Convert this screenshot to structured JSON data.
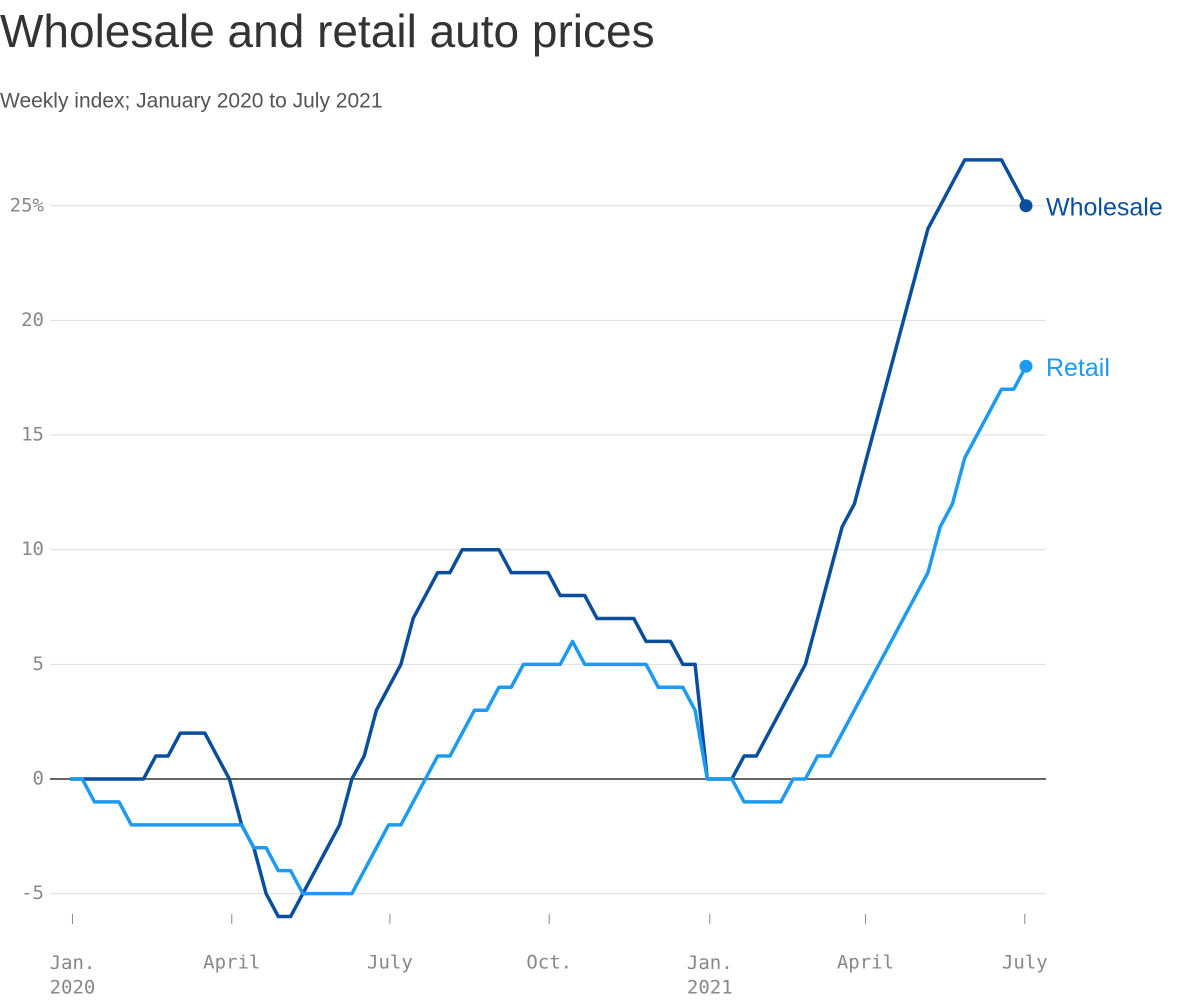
{
  "chart_data": {
    "type": "line",
    "title": "Wholesale and retail auto prices",
    "subtitle": "Weekly index; January 2020 to July 2021",
    "x": [
      0,
      1,
      2,
      3,
      4,
      5,
      6,
      7,
      8,
      9,
      10,
      11,
      12,
      13,
      14,
      15,
      16,
      17,
      18,
      19,
      20,
      21,
      22,
      23,
      24,
      25,
      26,
      27,
      28,
      29,
      30,
      31,
      32,
      33,
      34,
      35,
      36,
      37,
      38,
      39,
      40,
      41,
      42,
      43,
      44,
      45,
      46,
      47,
      48,
      49,
      50,
      51,
      52,
      53,
      54,
      55,
      56,
      57,
      58,
      59,
      60,
      61,
      62,
      63,
      64,
      65,
      66,
      67,
      68,
      69,
      70,
      71,
      72,
      73,
      74,
      75,
      76,
      77,
      78
    ],
    "series": [
      {
        "name": "Wholesale",
        "color": "#0b4f9c",
        "values": [
          0,
          0,
          0,
          0,
          0,
          0,
          0,
          1,
          1,
          2,
          2,
          2,
          1,
          0,
          -2,
          -3,
          -5,
          -6,
          -6,
          -5,
          -4,
          -3,
          -2,
          0,
          1,
          3,
          4,
          5,
          7,
          8,
          9,
          9,
          10,
          10,
          10,
          10,
          9,
          9,
          9,
          9,
          8,
          8,
          8,
          7,
          7,
          7,
          7,
          6,
          6,
          6,
          5,
          5,
          0,
          0,
          0,
          1,
          1,
          2,
          3,
          4,
          5,
          7,
          9,
          11,
          12,
          14,
          16,
          18,
          20,
          22,
          24,
          25,
          26,
          27,
          27,
          27,
          27,
          26,
          25
        ]
      },
      {
        "name": "Retail",
        "color": "#1e9af0",
        "values": [
          0,
          0,
          -1,
          -1,
          -1,
          -2,
          -2,
          -2,
          -2,
          -2,
          -2,
          -2,
          -2,
          -2,
          -2,
          -3,
          -3,
          -4,
          -4,
          -5,
          -5,
          -5,
          -5,
          -5,
          -4,
          -3,
          -2,
          -2,
          -1,
          0,
          1,
          1,
          2,
          3,
          3,
          4,
          4,
          5,
          5,
          5,
          5,
          6,
          5,
          5,
          5,
          5,
          5,
          5,
          4,
          4,
          4,
          3,
          0,
          0,
          0,
          -1,
          -1,
          -1,
          -1,
          0,
          0,
          1,
          1,
          2,
          3,
          4,
          5,
          6,
          7,
          8,
          9,
          11,
          12,
          14,
          15,
          16,
          17,
          17,
          18
        ]
      }
    ],
    "xlim": [
      0,
      78
    ],
    "xticks": [
      {
        "value": 0.2,
        "label": "Jan.\n2020"
      },
      {
        "value": 13.2,
        "label": "April"
      },
      {
        "value": 26.1,
        "label": "July"
      },
      {
        "value": 39.1,
        "label": "Oct."
      },
      {
        "value": 52.2,
        "label": "Jan.\n2021"
      },
      {
        "value": 64.9,
        "label": "April"
      },
      {
        "value": 77.9,
        "label": "July"
      }
    ],
    "ylim": [
      -6.5,
      28
    ],
    "yticks": [
      -5,
      0,
      5,
      10,
      15,
      20,
      {
        "value": 25,
        "label": "25%"
      }
    ],
    "grid": true
  }
}
